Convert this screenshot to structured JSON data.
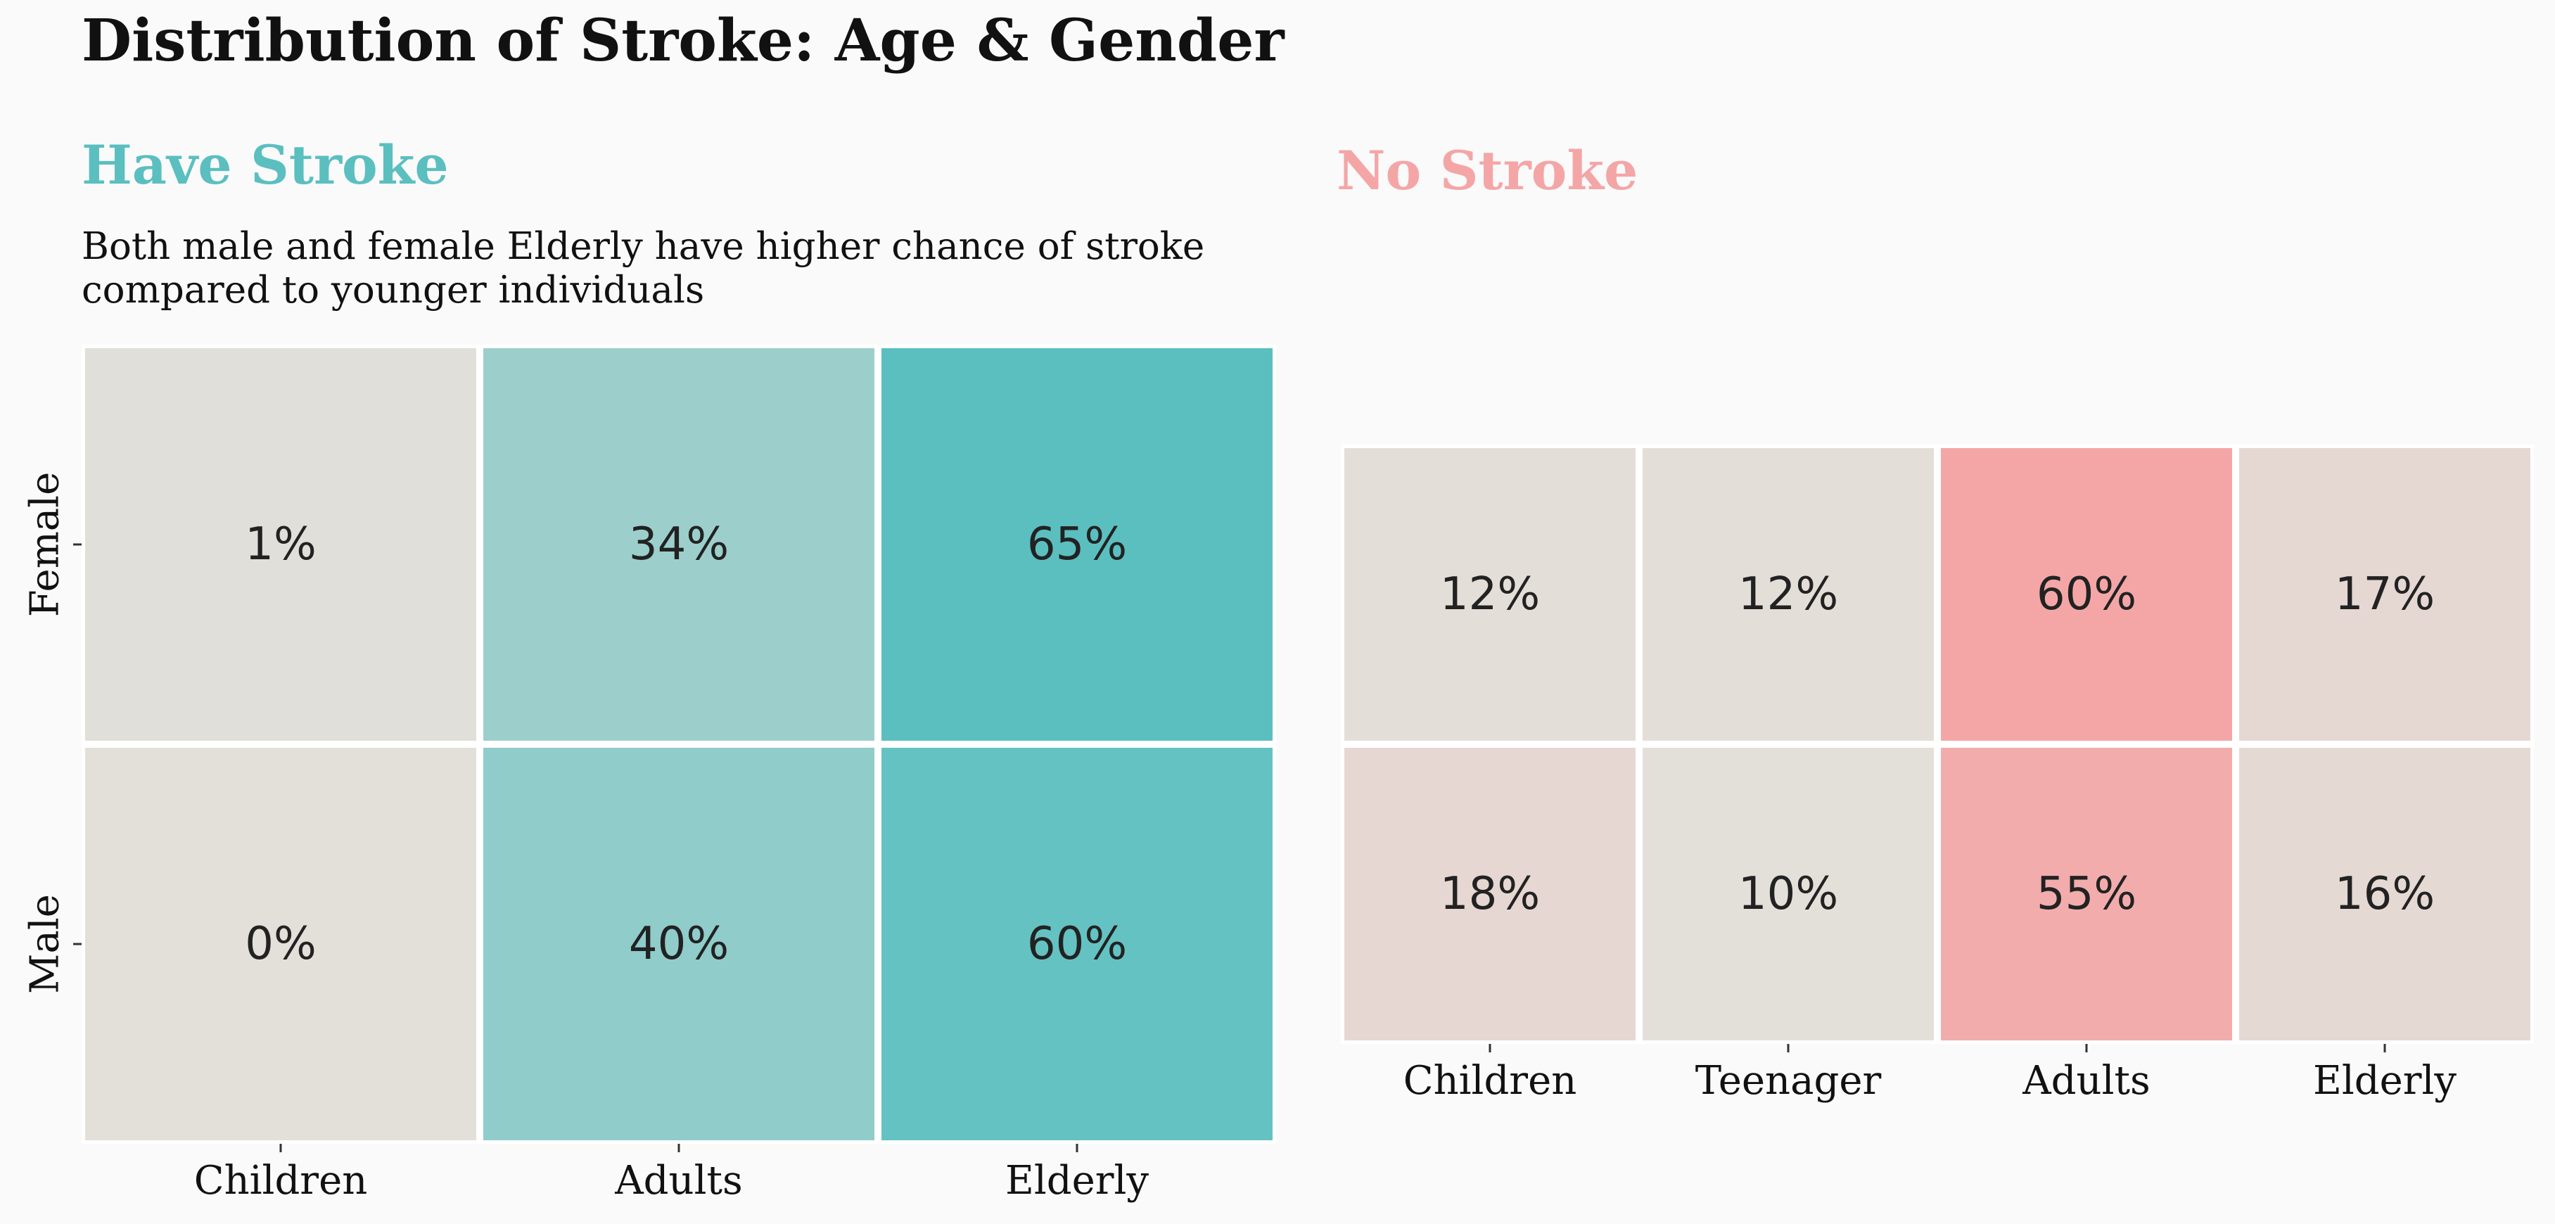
{
  "title": "Distribution of Stroke: Age & Gender",
  "colors": {
    "have_stroke": "#5bbfc0",
    "no_stroke": "#f4a6a7",
    "background": "#fafafa"
  },
  "chart_data": [
    {
      "type": "heatmap",
      "title": "Have Stroke",
      "subtitle_lines": [
        "Both male and female Elderly have higher chance of stroke",
        "compared to younger individuals"
      ],
      "x": [
        "Children",
        "Adults",
        "Elderly"
      ],
      "y": [
        "Female",
        "Male"
      ],
      "values": [
        [
          1,
          34,
          65
        ],
        [
          0,
          40,
          60
        ]
      ],
      "value_format": "percent",
      "color_low": "#e3e0da",
      "color_high": "#5bbfc0",
      "grid": false,
      "legend": "none"
    },
    {
      "type": "heatmap",
      "title": "No Stroke",
      "x": [
        "Children",
        "Teenager",
        "Adults",
        "Elderly"
      ],
      "y": [],
      "values": [
        [
          12,
          12,
          60,
          17
        ],
        [
          18,
          10,
          55,
          16
        ]
      ],
      "value_format": "percent",
      "color_low": "#e3e0da",
      "color_high": "#f4a6a7",
      "grid": false,
      "legend": "none"
    }
  ]
}
